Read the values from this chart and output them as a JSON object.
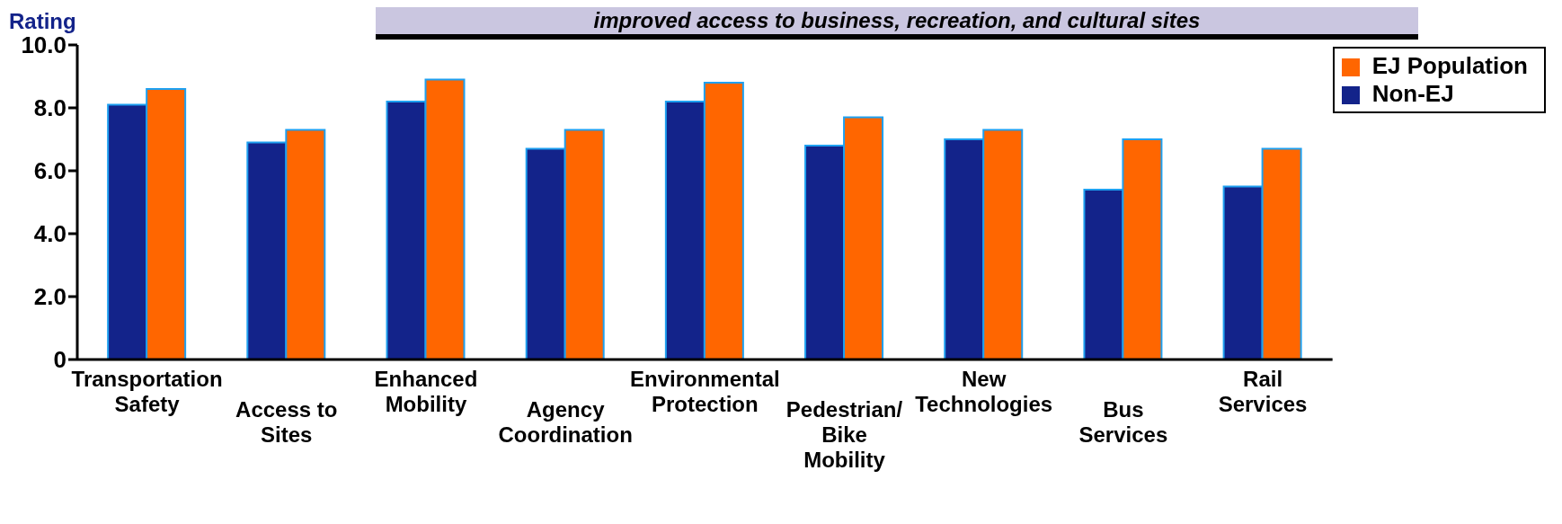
{
  "chart_data": {
    "type": "bar",
    "title": "improved access to business, recreation, and cultural sites",
    "ylabel": "Rating",
    "categories": [
      "Transportation Safety",
      "Access to Sites",
      "Enhanced Mobility",
      "Agency Coordination",
      "Environmental Protection",
      "Pedestrian/ Bike Mobility",
      "New Technologies",
      "Bus Services",
      "Rail Services"
    ],
    "series": [
      {
        "name": "Non-EJ",
        "color": "#13238a",
        "values": [
          8.1,
          6.9,
          8.2,
          6.7,
          8.2,
          6.8,
          7.0,
          5.4,
          5.5
        ]
      },
      {
        "name": "EJ Population",
        "color": "#ff6600",
        "values": [
          8.6,
          7.3,
          8.9,
          7.3,
          8.8,
          7.7,
          7.3,
          7.0,
          6.7
        ]
      }
    ],
    "ylim": [
      0,
      10
    ],
    "yticks": [
      {
        "value": 0,
        "label": "0"
      },
      {
        "value": 2,
        "label": "2.0"
      },
      {
        "value": 4,
        "label": "4.0"
      },
      {
        "value": 6,
        "label": "6.0"
      },
      {
        "value": 8,
        "label": "8.0"
      },
      {
        "value": 10,
        "label": "10.0"
      }
    ],
    "legend": "top right",
    "grid": false
  }
}
